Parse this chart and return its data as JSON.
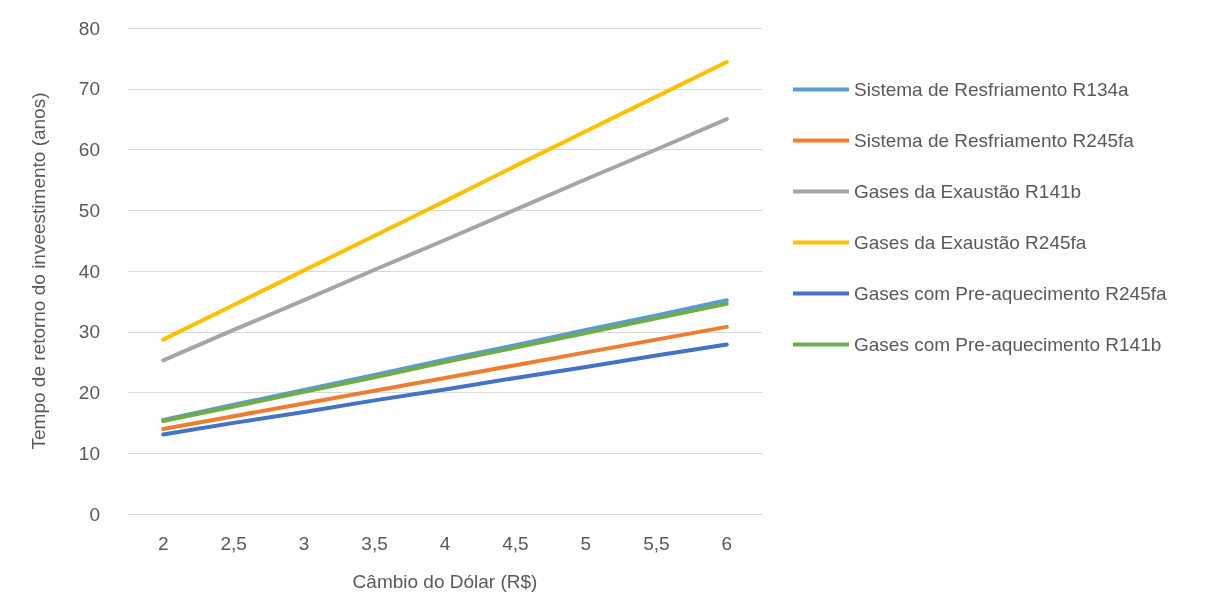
{
  "chart_data": {
    "type": "line",
    "xlabel": "Câmbio do Dólar (R$)",
    "ylabel": "Tempo de retorno do inveestimento (anos)",
    "categories": [
      "2",
      "2,5",
      "3",
      "3,5",
      "4",
      "4,5",
      "5",
      "5,5",
      "6"
    ],
    "ylim": [
      0,
      80
    ],
    "yticks": [
      0,
      10,
      20,
      30,
      40,
      50,
      60,
      70,
      80
    ],
    "grid": "y",
    "legend": "right",
    "marker": "none",
    "series": [
      {
        "name": "Sistema de Resfriamento R134a",
        "color": "#5b9bd5",
        "values": [
          15.5,
          18.0,
          20.4,
          22.9,
          25.4,
          27.8,
          30.3,
          32.7,
          35.2
        ]
      },
      {
        "name": "Sistema de Resfriamento R245fa",
        "color": "#ed7d31",
        "values": [
          14.0,
          16.1,
          18.2,
          20.3,
          22.4,
          24.5,
          26.6,
          28.7,
          30.8
        ]
      },
      {
        "name": "Gases da Exaustão R141b",
        "color": "#a5a5a5",
        "values": [
          25.3,
          30.3,
          35.2,
          40.2,
          45.1,
          50.1,
          55.1,
          60.0,
          65.0
        ]
      },
      {
        "name": "Gases da Exaustão R245fa",
        "color": "#ffc000",
        "values": [
          28.7,
          34.4,
          40.1,
          45.8,
          51.5,
          57.3,
          63.0,
          68.7,
          74.4
        ]
      },
      {
        "name": "Gases com Pre-aquecimento R245fa",
        "color": "#4472c4",
        "values": [
          13.1,
          15.0,
          16.8,
          18.7,
          20.5,
          22.4,
          24.2,
          26.1,
          27.9
        ]
      },
      {
        "name": "Gases com Pre-aquecimento R141b",
        "color": "#70ad47",
        "values": [
          15.3,
          17.7,
          20.1,
          22.5,
          25.0,
          27.4,
          29.8,
          32.2,
          34.6
        ]
      }
    ]
  }
}
